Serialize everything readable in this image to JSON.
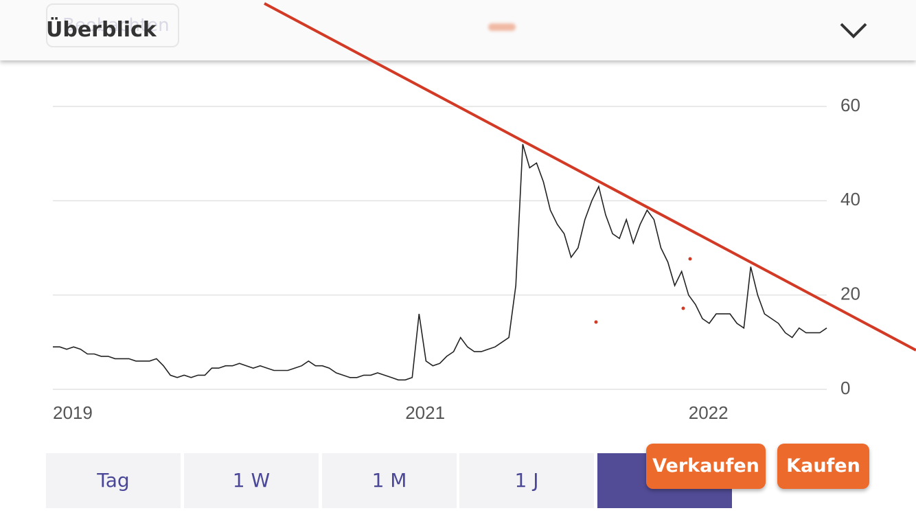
{
  "header": {
    "title": "Überblick",
    "watch_button": "Beobachten"
  },
  "chart_data": {
    "type": "line",
    "color": "#222222",
    "values": [
      9,
      9,
      8.5,
      9,
      8.5,
      7.5,
      7.5,
      7,
      7,
      6.5,
      6.5,
      6.5,
      6,
      6,
      6,
      6.5,
      5,
      3,
      2.5,
      3,
      2.5,
      3,
      3,
      4.5,
      4.5,
      5,
      5,
      5.5,
      5,
      4.5,
      5,
      4.5,
      4,
      4,
      4,
      4.5,
      5,
      6,
      5,
      5,
      4.5,
      3.5,
      3,
      2.5,
      2.5,
      3,
      3,
      3.5,
      3,
      2.5,
      2,
      2,
      2.5,
      16,
      6,
      5,
      5.5,
      7,
      8,
      11,
      9,
      8,
      8,
      8.5,
      9,
      10,
      11,
      22,
      52,
      47,
      48,
      44,
      38,
      35,
      33,
      28,
      30,
      36,
      40,
      43,
      37,
      33,
      32,
      36,
      31,
      35,
      38,
      36,
      30,
      27,
      22,
      25,
      20,
      18,
      15,
      14,
      16,
      16,
      16,
      14,
      13,
      26,
      20,
      16,
      15,
      14,
      12,
      11,
      13,
      12,
      12,
      12,
      13
    ],
    "xlim": [
      0,
      112
    ],
    "xticks": [
      {
        "value": 0,
        "label": "2019"
      },
      {
        "value": 51,
        "label": "2021"
      },
      {
        "value": 92,
        "label": "2022"
      }
    ],
    "ylim": [
      0,
      60
    ],
    "yticks": [
      0,
      20,
      40,
      60
    ],
    "grid": true
  },
  "periods": [
    "Tag",
    "1 W",
    "1 M",
    "1 J"
  ],
  "actions": {
    "sell": "Verkaufen",
    "buy": "Kaufen"
  }
}
